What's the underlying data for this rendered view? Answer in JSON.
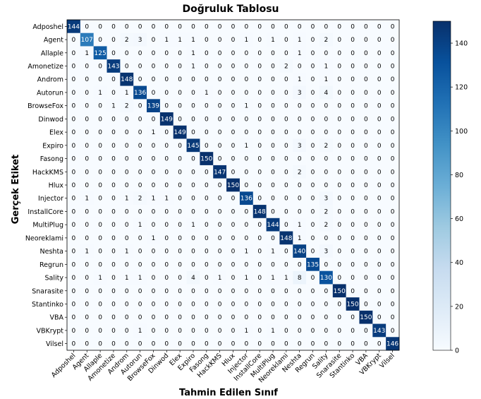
{
  "chart_data": {
    "type": "heatmap",
    "title": "Doğruluk Tablosu",
    "xlabel": "Tahmin Edilen Sınıf",
    "ylabel": "Gerçek Etiket",
    "categories": [
      "Adposhel",
      "Agent",
      "Allaple",
      "Amonetize",
      "Androm",
      "Autorun",
      "BrowseFox",
      "Dinwod",
      "Elex",
      "Expiro",
      "Fasong",
      "HackKMS",
      "Hlux",
      "Injector",
      "InstallCore",
      "MultiPlug",
      "Neoreklami",
      "Neshta",
      "Regrun",
      "Sality",
      "Snarasite",
      "Stantinko",
      "VBA",
      "VBKrypt",
      "Vilsel"
    ],
    "matrix": [
      [
        144,
        0,
        0,
        0,
        0,
        0,
        0,
        0,
        0,
        0,
        0,
        0,
        0,
        0,
        0,
        0,
        0,
        0,
        0,
        0,
        0,
        0,
        0,
        0,
        0
      ],
      [
        0,
        107,
        0,
        0,
        2,
        3,
        0,
        1,
        1,
        1,
        0,
        0,
        0,
        1,
        0,
        1,
        0,
        1,
        0,
        2,
        0,
        0,
        0,
        0,
        0
      ],
      [
        0,
        1,
        125,
        0,
        0,
        0,
        0,
        0,
        0,
        1,
        0,
        0,
        0,
        0,
        0,
        0,
        0,
        1,
        0,
        0,
        0,
        0,
        0,
        0,
        0
      ],
      [
        0,
        0,
        0,
        143,
        0,
        0,
        0,
        0,
        0,
        1,
        0,
        0,
        0,
        0,
        0,
        0,
        2,
        0,
        0,
        1,
        0,
        0,
        0,
        0,
        0
      ],
      [
        0,
        0,
        0,
        0,
        148,
        0,
        0,
        0,
        0,
        0,
        0,
        0,
        0,
        0,
        0,
        0,
        0,
        1,
        0,
        1,
        0,
        0,
        0,
        0,
        0
      ],
      [
        0,
        0,
        1,
        0,
        1,
        136,
        0,
        0,
        0,
        0,
        1,
        0,
        0,
        0,
        0,
        0,
        0,
        3,
        0,
        4,
        0,
        0,
        0,
        0,
        0
      ],
      [
        0,
        0,
        0,
        1,
        2,
        0,
        139,
        0,
        0,
        0,
        0,
        0,
        0,
        1,
        0,
        0,
        0,
        0,
        0,
        0,
        0,
        0,
        0,
        0,
        0
      ],
      [
        0,
        0,
        0,
        0,
        0,
        0,
        0,
        149,
        0,
        0,
        0,
        0,
        0,
        0,
        0,
        0,
        0,
        0,
        0,
        0,
        0,
        0,
        0,
        0,
        0
      ],
      [
        0,
        0,
        0,
        0,
        0,
        0,
        1,
        0,
        149,
        0,
        0,
        0,
        0,
        0,
        0,
        0,
        0,
        0,
        0,
        0,
        0,
        0,
        0,
        0,
        0
      ],
      [
        0,
        0,
        0,
        0,
        0,
        0,
        0,
        0,
        0,
        145,
        0,
        0,
        0,
        1,
        0,
        0,
        0,
        3,
        0,
        2,
        0,
        0,
        0,
        0,
        0
      ],
      [
        0,
        0,
        0,
        0,
        0,
        0,
        0,
        0,
        0,
        0,
        150,
        0,
        0,
        0,
        0,
        0,
        0,
        0,
        0,
        0,
        0,
        0,
        0,
        0,
        0
      ],
      [
        0,
        0,
        0,
        0,
        0,
        0,
        0,
        0,
        0,
        0,
        0,
        147,
        0,
        0,
        0,
        0,
        0,
        2,
        0,
        0,
        0,
        0,
        0,
        0,
        0
      ],
      [
        0,
        0,
        0,
        0,
        0,
        0,
        0,
        0,
        0,
        0,
        0,
        0,
        150,
        0,
        0,
        0,
        0,
        0,
        0,
        0,
        0,
        0,
        0,
        0,
        0
      ],
      [
        0,
        1,
        0,
        0,
        1,
        2,
        1,
        1,
        0,
        0,
        0,
        0,
        0,
        136,
        0,
        0,
        0,
        0,
        0,
        3,
        0,
        0,
        0,
        0,
        0
      ],
      [
        0,
        0,
        0,
        0,
        0,
        0,
        0,
        0,
        0,
        0,
        0,
        0,
        0,
        0,
        148,
        0,
        0,
        0,
        0,
        2,
        0,
        0,
        0,
        0,
        0
      ],
      [
        0,
        0,
        0,
        0,
        0,
        1,
        0,
        0,
        0,
        1,
        0,
        0,
        0,
        0,
        0,
        144,
        0,
        1,
        0,
        2,
        0,
        0,
        0,
        0,
        0
      ],
      [
        0,
        0,
        0,
        0,
        0,
        0,
        1,
        0,
        0,
        0,
        0,
        0,
        0,
        0,
        0,
        0,
        148,
        1,
        0,
        0,
        0,
        0,
        0,
        0,
        0
      ],
      [
        0,
        1,
        0,
        0,
        1,
        0,
        0,
        0,
        0,
        0,
        0,
        0,
        0,
        1,
        0,
        1,
        0,
        140,
        0,
        3,
        0,
        0,
        0,
        0,
        0
      ],
      [
        0,
        0,
        0,
        0,
        0,
        0,
        0,
        0,
        0,
        0,
        0,
        0,
        0,
        0,
        0,
        0,
        0,
        0,
        135,
        0,
        0,
        0,
        0,
        0,
        0
      ],
      [
        0,
        0,
        1,
        0,
        1,
        1,
        0,
        0,
        0,
        4,
        0,
        1,
        0,
        1,
        0,
        1,
        1,
        8,
        0,
        130,
        0,
        0,
        0,
        0,
        0
      ],
      [
        0,
        0,
        0,
        0,
        0,
        0,
        0,
        0,
        0,
        0,
        0,
        0,
        0,
        0,
        0,
        0,
        0,
        0,
        0,
        0,
        150,
        0,
        0,
        0,
        0
      ],
      [
        0,
        0,
        0,
        0,
        0,
        0,
        0,
        0,
        0,
        0,
        0,
        0,
        0,
        0,
        0,
        0,
        0,
        0,
        0,
        0,
        0,
        150,
        0,
        0,
        0
      ],
      [
        0,
        0,
        0,
        0,
        0,
        0,
        0,
        0,
        0,
        0,
        0,
        0,
        0,
        0,
        0,
        0,
        0,
        0,
        0,
        0,
        0,
        0,
        150,
        0,
        0
      ],
      [
        0,
        0,
        0,
        0,
        0,
        1,
        0,
        0,
        0,
        0,
        0,
        0,
        0,
        1,
        0,
        1,
        0,
        0,
        0,
        0,
        0,
        0,
        0,
        143,
        0
      ],
      [
        0,
        0,
        0,
        0,
        0,
        0,
        0,
        0,
        0,
        0,
        0,
        0,
        0,
        0,
        0,
        0,
        0,
        0,
        0,
        0,
        0,
        0,
        0,
        0,
        146
      ]
    ],
    "colorbar": {
      "min": 0,
      "max": 150,
      "ticks": [
        0,
        20,
        40,
        60,
        80,
        100,
        120,
        140
      ]
    },
    "colormap": {
      "low": "#f7fbff",
      "mid": "#6baed6",
      "high": "#08306b"
    },
    "grid": false
  }
}
